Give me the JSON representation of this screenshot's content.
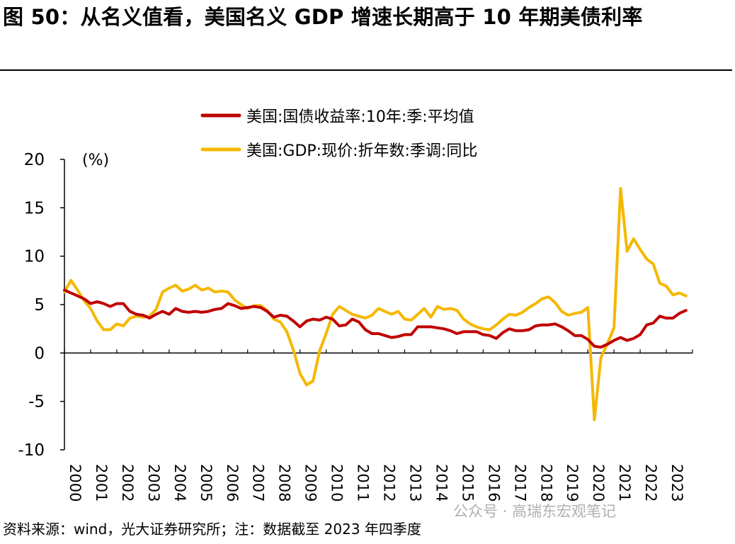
{
  "title": "图 50：从名义值看，美国名义 GDP 增速长期高于 10 年期美债利率",
  "source_note": "资料来源：wind，光大证券研究所；注：数据截至 2023 年四季度",
  "watermark": "公众号 · 高瑞东宏观笔记",
  "colors": {
    "treasury": "#c00000",
    "gdp": "#f5b800",
    "axis": "#000000"
  },
  "chart_data": {
    "type": "line",
    "title": "",
    "ylabel": "(%)",
    "xlabel": "",
    "ylim": [
      -10,
      20
    ],
    "yticks": [
      "20",
      "15",
      "10",
      "5",
      "0",
      "-5",
      "-10"
    ],
    "grid": false,
    "legend_position": "top",
    "categories": [
      "2000",
      "2001",
      "2002",
      "2003",
      "2004",
      "2005",
      "2006",
      "2007",
      "2008",
      "2009",
      "2010",
      "2011",
      "2012",
      "2013",
      "2014",
      "2015",
      "2016",
      "2017",
      "2018",
      "2019",
      "2020",
      "2021",
      "2022",
      "2023"
    ],
    "series": [
      {
        "name": "美国:国债收益率:10年:季:平均值",
        "color": "#c00000",
        "x": [
          2000.0,
          2000.25,
          2000.5,
          2000.75,
          2001.0,
          2001.25,
          2001.5,
          2001.75,
          2002.0,
          2002.25,
          2002.5,
          2002.75,
          2003.0,
          2003.25,
          2003.5,
          2003.75,
          2004.0,
          2004.25,
          2004.5,
          2004.75,
          2005.0,
          2005.25,
          2005.5,
          2005.75,
          2006.0,
          2006.25,
          2006.5,
          2006.75,
          2007.0,
          2007.25,
          2007.5,
          2007.75,
          2008.0,
          2008.25,
          2008.5,
          2008.75,
          2009.0,
          2009.25,
          2009.5,
          2009.75,
          2010.0,
          2010.25,
          2010.5,
          2010.75,
          2011.0,
          2011.25,
          2011.5,
          2011.75,
          2012.0,
          2012.25,
          2012.5,
          2012.75,
          2013.0,
          2013.25,
          2013.5,
          2013.75,
          2014.0,
          2014.25,
          2014.5,
          2014.75,
          2015.0,
          2015.25,
          2015.5,
          2015.75,
          2016.0,
          2016.25,
          2016.5,
          2016.75,
          2017.0,
          2017.25,
          2017.5,
          2017.75,
          2018.0,
          2018.25,
          2018.5,
          2018.75,
          2019.0,
          2019.25,
          2019.5,
          2019.75,
          2020.0,
          2020.25,
          2020.5,
          2020.75,
          2021.0,
          2021.25,
          2021.5,
          2021.75,
          2022.0,
          2022.25,
          2022.5,
          2022.75,
          2023.0,
          2023.25,
          2023.5,
          2023.75
        ],
        "values": [
          6.5,
          6.2,
          5.9,
          5.6,
          5.1,
          5.3,
          5.1,
          4.8,
          5.1,
          5.1,
          4.3,
          4.0,
          3.9,
          3.6,
          4.0,
          4.3,
          4.0,
          4.6,
          4.3,
          4.2,
          4.3,
          4.2,
          4.3,
          4.5,
          4.6,
          5.1,
          4.9,
          4.6,
          4.7,
          4.8,
          4.7,
          4.3,
          3.7,
          3.9,
          3.8,
          3.3,
          2.7,
          3.3,
          3.5,
          3.4,
          3.7,
          3.5,
          2.8,
          2.9,
          3.5,
          3.2,
          2.4,
          2.0,
          2.0,
          1.8,
          1.6,
          1.7,
          1.9,
          1.9,
          2.7,
          2.7,
          2.7,
          2.6,
          2.5,
          2.3,
          2.0,
          2.2,
          2.2,
          2.2,
          1.9,
          1.8,
          1.5,
          2.1,
          2.5,
          2.3,
          2.3,
          2.4,
          2.8,
          2.9,
          2.9,
          3.0,
          2.7,
          2.3,
          1.8,
          1.8,
          1.4,
          0.7,
          0.6,
          0.9,
          1.3,
          1.6,
          1.3,
          1.5,
          1.9,
          2.9,
          3.1,
          3.8,
          3.6,
          3.6,
          4.1,
          4.4
        ]
      },
      {
        "name": "美国:GDP:现价:折年数:季调:同比",
        "color": "#f5b800",
        "x": [
          2000.0,
          2000.25,
          2000.5,
          2000.75,
          2001.0,
          2001.25,
          2001.5,
          2001.75,
          2002.0,
          2002.25,
          2002.5,
          2002.75,
          2003.0,
          2003.25,
          2003.5,
          2003.75,
          2004.0,
          2004.25,
          2004.5,
          2004.75,
          2005.0,
          2005.25,
          2005.5,
          2005.75,
          2006.0,
          2006.25,
          2006.5,
          2006.75,
          2007.0,
          2007.25,
          2007.5,
          2007.75,
          2008.0,
          2008.25,
          2008.5,
          2008.75,
          2009.0,
          2009.25,
          2009.5,
          2009.75,
          2010.0,
          2010.25,
          2010.5,
          2010.75,
          2011.0,
          2011.25,
          2011.5,
          2011.75,
          2012.0,
          2012.25,
          2012.5,
          2012.75,
          2013.0,
          2013.25,
          2013.5,
          2013.75,
          2014.0,
          2014.25,
          2014.5,
          2014.75,
          2015.0,
          2015.25,
          2015.5,
          2015.75,
          2016.0,
          2016.25,
          2016.5,
          2016.75,
          2017.0,
          2017.25,
          2017.5,
          2017.75,
          2018.0,
          2018.25,
          2018.5,
          2018.75,
          2019.0,
          2019.25,
          2019.5,
          2019.75,
          2020.0,
          2020.25,
          2020.5,
          2020.75,
          2021.0,
          2021.25,
          2021.5,
          2021.75,
          2022.0,
          2022.25,
          2022.5,
          2022.75,
          2023.0,
          2023.25,
          2023.5,
          2023.75
        ],
        "values": [
          6.3,
          7.5,
          6.5,
          5.4,
          4.6,
          3.3,
          2.4,
          2.4,
          3.0,
          2.8,
          3.6,
          3.8,
          3.7,
          3.8,
          4.5,
          6.3,
          6.7,
          7.0,
          6.4,
          6.6,
          7.0,
          6.5,
          6.7,
          6.3,
          6.4,
          6.3,
          5.5,
          5.0,
          4.6,
          4.9,
          4.9,
          4.4,
          3.5,
          3.2,
          2.2,
          0.3,
          -2.1,
          -3.3,
          -2.9,
          0.2,
          2.0,
          4.0,
          4.8,
          4.4,
          4.0,
          3.8,
          3.6,
          3.9,
          4.6,
          4.3,
          4.0,
          4.3,
          3.5,
          3.4,
          4.0,
          4.6,
          3.7,
          4.8,
          4.5,
          4.6,
          4.4,
          3.5,
          3.0,
          2.7,
          2.5,
          2.4,
          2.9,
          3.5,
          4.0,
          3.9,
          4.2,
          4.7,
          5.1,
          5.6,
          5.8,
          5.2,
          4.3,
          3.9,
          4.1,
          4.2,
          4.7,
          -6.9,
          -0.5,
          1.0,
          2.6,
          17.0,
          10.5,
          11.8,
          10.7,
          9.7,
          9.2,
          7.2,
          6.9,
          6.0,
          6.2,
          5.9
        ]
      }
    ]
  }
}
